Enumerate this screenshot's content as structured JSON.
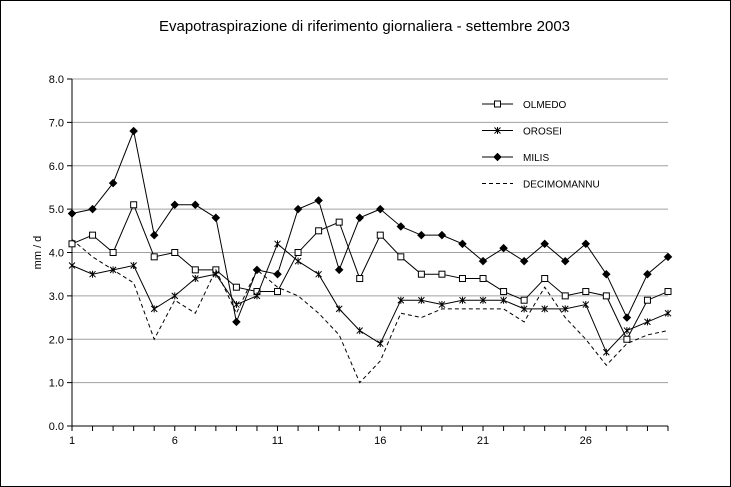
{
  "chart_data": {
    "type": "line",
    "title": "Evapotraspirazione di riferimento giornaliera - settembre 2003",
    "xlabel": "",
    "ylabel": "mm / d",
    "ylim": [
      0,
      8
    ],
    "yticks": [
      "0.0",
      "1.0",
      "2.0",
      "3.0",
      "4.0",
      "5.0",
      "6.0",
      "7.0",
      "8.0"
    ],
    "xticks": [
      "1",
      "6",
      "11",
      "16",
      "21",
      "26"
    ],
    "grid": "horizontal",
    "legend_position": "top-right",
    "x": [
      1,
      2,
      3,
      4,
      5,
      6,
      7,
      8,
      9,
      10,
      11,
      12,
      13,
      14,
      15,
      16,
      17,
      18,
      19,
      20,
      21,
      22,
      23,
      24,
      25,
      26,
      27,
      28,
      29,
      30
    ],
    "series": [
      {
        "name": "OLMEDO",
        "marker": "square",
        "dash": "solid",
        "values": [
          4.2,
          4.4,
          4.0,
          5.1,
          3.9,
          4.0,
          3.6,
          3.6,
          3.2,
          3.1,
          3.1,
          4.0,
          4.5,
          4.7,
          3.4,
          4.4,
          3.9,
          3.5,
          3.5,
          3.4,
          3.4,
          3.1,
          2.9,
          3.4,
          3.0,
          3.1,
          3.0,
          2.0,
          2.9,
          3.1
        ]
      },
      {
        "name": "OROSEI",
        "marker": "star",
        "dash": "solid",
        "values": [
          3.7,
          3.5,
          3.6,
          3.7,
          2.7,
          3.0,
          3.4,
          3.5,
          2.8,
          3.0,
          4.2,
          3.8,
          3.5,
          2.7,
          2.2,
          1.9,
          2.9,
          2.9,
          2.8,
          2.9,
          2.9,
          2.9,
          2.7,
          2.7,
          2.7,
          2.8,
          1.7,
          2.2,
          2.4,
          2.6
        ]
      },
      {
        "name": "MILIS",
        "marker": "diamond",
        "dash": "solid",
        "values": [
          4.9,
          5.0,
          5.6,
          6.8,
          4.4,
          5.1,
          5.1,
          4.8,
          2.4,
          3.6,
          3.5,
          5.0,
          5.2,
          3.6,
          4.8,
          5.0,
          4.6,
          4.4,
          4.4,
          4.2,
          3.8,
          4.1,
          3.8,
          4.2,
          3.8,
          4.2,
          3.5,
          2.5,
          3.5,
          3.9
        ]
      },
      {
        "name": "DECIMOMANNU",
        "marker": "none",
        "dash": "dashed",
        "values": [
          4.3,
          3.9,
          3.6,
          3.3,
          2.0,
          2.9,
          2.6,
          3.6,
          2.6,
          3.6,
          3.2,
          3.0,
          2.6,
          2.1,
          1.0,
          1.5,
          2.6,
          2.5,
          2.7,
          2.7,
          2.7,
          2.7,
          2.4,
          3.2,
          2.5,
          2.0,
          1.4,
          1.9,
          2.1,
          2.2
        ]
      }
    ]
  }
}
